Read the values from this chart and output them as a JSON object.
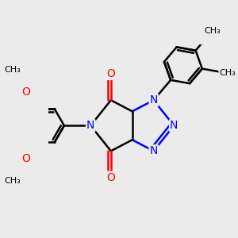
{
  "bg_color": "#ebebeb",
  "bond_color": "#000000",
  "N_color": "#0000ff",
  "O_color": "#ff0000",
  "bond_width": 1.8,
  "font_size_atom": 10,
  "font_size_me": 8,
  "xlim": [
    -1.6,
    1.8
  ],
  "ylim": [
    -1.6,
    1.6
  ]
}
